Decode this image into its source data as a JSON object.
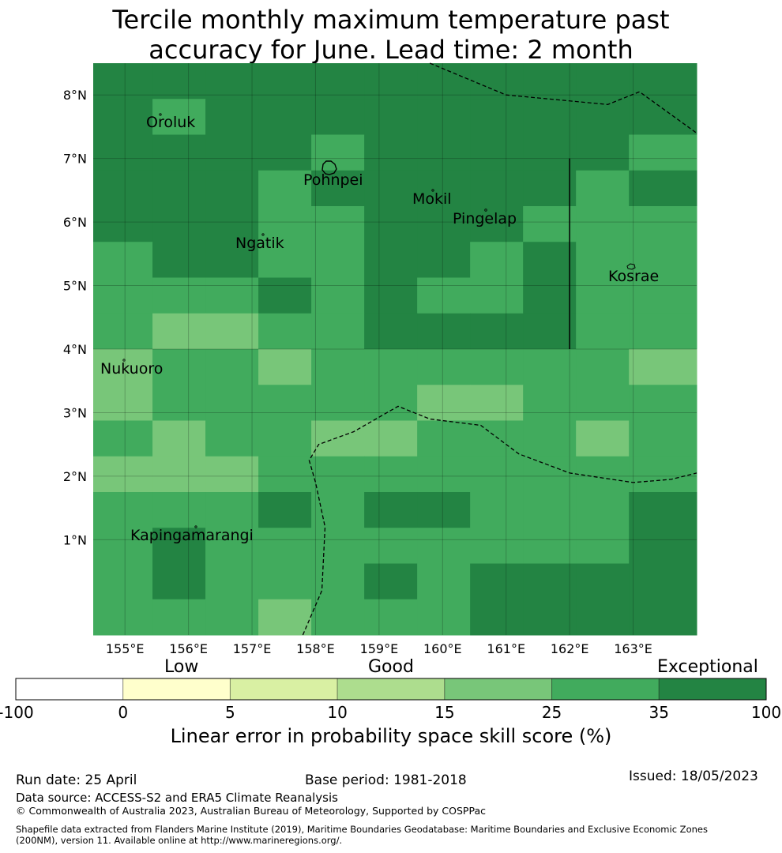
{
  "title": {
    "line1": "Tercile monthly maximum temperature past",
    "line2": "accuracy for June. Lead time: 2 month"
  },
  "map": {
    "lon_range": [
      154.5,
      164.0
    ],
    "lat_range": [
      -0.5,
      8.5
    ],
    "cell_size_deg": 0.8333,
    "lon_ticks": [
      {
        "value": 155,
        "label": "155°E"
      },
      {
        "value": 156,
        "label": "156°E"
      },
      {
        "value": 157,
        "label": "157°E"
      },
      {
        "value": 158,
        "label": "158°E"
      },
      {
        "value": 159,
        "label": "159°E"
      },
      {
        "value": 160,
        "label": "160°E"
      },
      {
        "value": 161,
        "label": "161°E"
      },
      {
        "value": 162,
        "label": "162°E"
      },
      {
        "value": 163,
        "label": "163°E"
      }
    ],
    "lat_ticks": [
      {
        "value": 1,
        "label": "1°N"
      },
      {
        "value": 2,
        "label": "2°N"
      },
      {
        "value": 3,
        "label": "3°N"
      },
      {
        "value": 4,
        "label": "4°N"
      },
      {
        "value": 5,
        "label": "5°N"
      },
      {
        "value": 6,
        "label": "6°N"
      },
      {
        "value": 7,
        "label": "7°N"
      },
      {
        "value": 8,
        "label": "8°N"
      }
    ],
    "skill_grid_levels": [
      [
        6,
        6,
        6,
        6,
        6,
        6,
        6,
        6,
        6,
        6,
        6
      ],
      [
        6,
        5,
        6,
        6,
        6,
        6,
        6,
        6,
        6,
        6,
        6
      ],
      [
        6,
        6,
        6,
        6,
        5,
        6,
        6,
        6,
        6,
        6,
        5
      ],
      [
        6,
        6,
        6,
        5,
        6,
        6,
        6,
        6,
        6,
        5,
        6
      ],
      [
        6,
        6,
        6,
        5,
        5,
        6,
        6,
        6,
        5,
        5,
        5
      ],
      [
        5,
        6,
        6,
        5,
        5,
        6,
        6,
        5,
        6,
        5,
        5
      ],
      [
        5,
        5,
        5,
        6,
        5,
        6,
        5,
        5,
        6,
        5,
        5
      ],
      [
        5,
        4,
        4,
        5,
        5,
        6,
        6,
        6,
        6,
        5,
        5
      ],
      [
        4,
        5,
        5,
        4,
        5,
        5,
        5,
        5,
        5,
        5,
        4
      ],
      [
        4,
        5,
        5,
        5,
        5,
        5,
        4,
        4,
        5,
        5,
        5
      ],
      [
        5,
        4,
        5,
        5,
        4,
        4,
        5,
        5,
        5,
        4,
        5
      ],
      [
        4,
        4,
        4,
        5,
        5,
        5,
        5,
        5,
        5,
        5,
        5
      ],
      [
        5,
        5,
        5,
        6,
        5,
        6,
        6,
        5,
        5,
        5,
        6
      ],
      [
        5,
        6,
        5,
        5,
        5,
        5,
        5,
        5,
        5,
        5,
        6
      ],
      [
        5,
        6,
        5,
        5,
        5,
        6,
        5,
        6,
        6,
        6,
        6
      ],
      [
        5,
        5,
        5,
        4,
        5,
        5,
        5,
        6,
        6,
        6,
        6
      ]
    ],
    "places": [
      {
        "name": "Oroluk",
        "lon": 155.35,
        "lat": 7.55
      },
      {
        "name": "Pohnpei",
        "lon": 158.2,
        "lat": 6.85
      },
      {
        "name": "Mokil",
        "lon": 159.8,
        "lat": 6.7
      },
      {
        "name": "Pingelap",
        "lon": 160.7,
        "lat": 6.22
      },
      {
        "name": "Ngatik",
        "lon": 157.2,
        "lat": 5.8
      },
      {
        "name": "Kosrae",
        "lon": 163.0,
        "lat": 5.3
      },
      {
        "name": "Nukuoro",
        "lon": 154.8,
        "lat": 3.85
      },
      {
        "name": "Kapingamarangi",
        "lon": 154.9,
        "lat": 1.05
      }
    ],
    "island_labels": {
      "oroluk": "Oroluk",
      "pohnpei": "Pohnpei",
      "mokil": "Mokil",
      "pingelap": "Pingelap",
      "ngatik": "Ngatik",
      "kosrae": "Kosrae",
      "nukuoro": "Nukuoro",
      "kapingamarangi": "Kapingamarangi"
    },
    "eez_boundaries": [
      [
        [
          159.8,
          8.5
        ],
        [
          161.0,
          8.0
        ],
        [
          162.6,
          7.85
        ],
        [
          163.1,
          8.05
        ],
        [
          164.0,
          7.4
        ]
      ],
      [
        [
          157.8,
          -0.5
        ],
        [
          158.1,
          0.2
        ],
        [
          158.15,
          1.2
        ],
        [
          158.0,
          1.9
        ],
        [
          157.9,
          2.25
        ],
        [
          158.05,
          2.5
        ],
        [
          158.6,
          2.7
        ],
        [
          159.3,
          3.1
        ],
        [
          159.8,
          2.9
        ],
        [
          160.6,
          2.8
        ],
        [
          161.2,
          2.35
        ],
        [
          162.0,
          2.05
        ],
        [
          163.0,
          1.9
        ],
        [
          163.6,
          1.95
        ],
        [
          164.0,
          2.05
        ]
      ]
    ],
    "solid_boundary": [
      [
        162.0,
        7.0
      ],
      [
        162.0,
        4.0
      ]
    ]
  },
  "colorbar": {
    "colors": [
      "#ffffff",
      "#ffffcc",
      "#d9f0a3",
      "#addd8e",
      "#78c679",
      "#41ab5d",
      "#238443"
    ],
    "ticks": [
      "-100",
      "0",
      "5",
      "10",
      "15",
      "25",
      "35",
      "100"
    ],
    "category_labels": {
      "low": "Low",
      "good": "Good",
      "exceptional": "Exceptional"
    },
    "title": "Linear error in probability space skill score (%)"
  },
  "footer": {
    "run_date": "Run date: 25 April",
    "base_period": "Base period: 1981-2018",
    "issued": "Issued: 18/05/2023",
    "data_source": "Data source: ACCESS-S2 and ERA5 Climate Reanalysis",
    "copyright": "© Commonwealth of Australia 2023, Australian Bureau of Meteorology, Supported by COSPPac",
    "shapefile_line1": "Shapefile data extracted from Flanders Marine Institute (2019), Maritime Boundaries Geodatabase: Maritime Boundaries and Exclusive Economic Zones",
    "shapefile_line2": "(200NM), version 11. Available online at http://www.marineregions.org/."
  }
}
